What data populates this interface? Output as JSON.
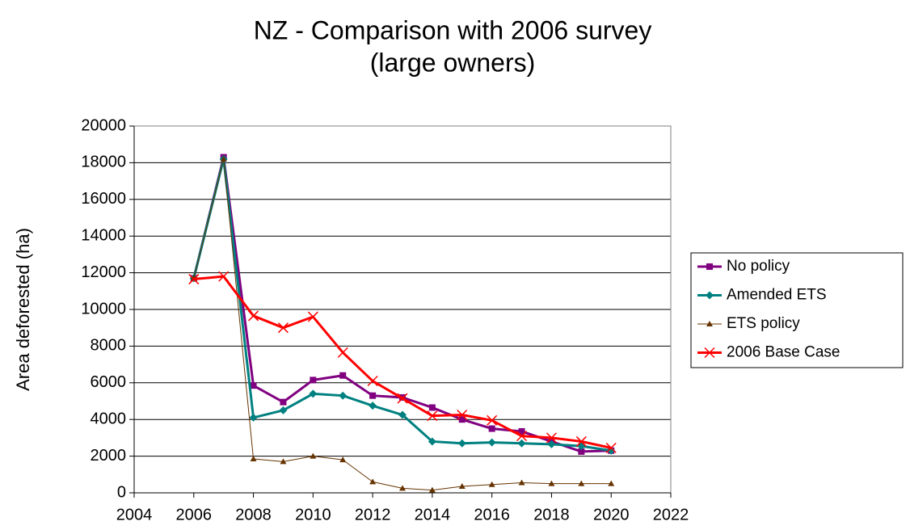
{
  "chart_data": {
    "type": "line",
    "title": [
      "NZ - Comparison with 2006 survey",
      "(large owners)"
    ],
    "y_label": "Area deforested (ha)",
    "x": [
      2006,
      2007,
      2008,
      2009,
      2010,
      2011,
      2012,
      2013,
      2014,
      2015,
      2016,
      2017,
      2018,
      2019,
      2020
    ],
    "series": [
      {
        "name": "No policy",
        "color": "#800080",
        "marker": "square",
        "width": 3,
        "values": [
          11700,
          18300,
          5850,
          4950,
          6150,
          6400,
          5300,
          5200,
          4650,
          4000,
          3500,
          3350,
          2800,
          2250,
          2300
        ]
      },
      {
        "name": "Amended ETS",
        "color": "#008080",
        "marker": "diamond",
        "width": 3,
        "values": [
          11700,
          18200,
          4100,
          4500,
          5400,
          5300,
          4750,
          4250,
          2800,
          2700,
          2750,
          2700,
          2650,
          2550,
          2300
        ]
      },
      {
        "name": "ETS policy",
        "color": "#663300",
        "marker": "triangle",
        "width": 1,
        "values": [
          11700,
          18200,
          1850,
          1700,
          2000,
          1800,
          600,
          250,
          150,
          350,
          450,
          550,
          500,
          500,
          500
        ]
      },
      {
        "name": "2006 Base Case",
        "color": "#ff0000",
        "marker": "x",
        "width": 3,
        "values": [
          11650,
          11800,
          9650,
          9000,
          9600,
          7650,
          6100,
          5150,
          4200,
          4250,
          3950,
          3100,
          3000,
          2800,
          2450
        ]
      }
    ],
    "xlim": [
      2004,
      2022
    ],
    "xticks": [
      2004,
      2006,
      2008,
      2010,
      2012,
      2014,
      2016,
      2018,
      2020,
      2022
    ],
    "ylim": [
      0,
      20000
    ],
    "yticks": [
      0,
      2000,
      4000,
      6000,
      8000,
      10000,
      12000,
      14000,
      16000,
      18000,
      20000
    ],
    "grid": true,
    "legend": "right"
  }
}
